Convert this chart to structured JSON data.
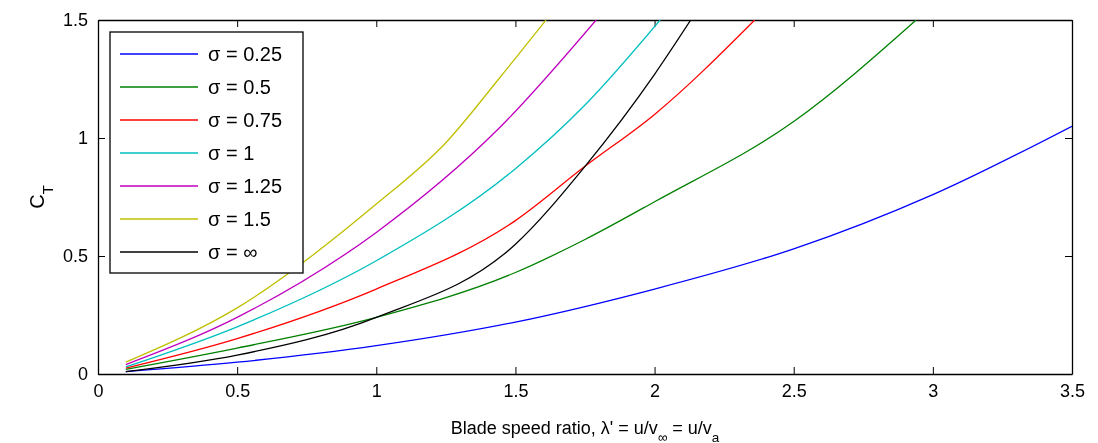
{
  "chart_data": {
    "type": "line",
    "xlabel": "Blade speed ratio, λ' = u/v$_{∞}$ = u/v$_{a}$",
    "ylabel": "C$_{T}$",
    "xlim": [
      0,
      3.5
    ],
    "xticks": [
      0,
      0.5,
      1,
      1.5,
      2,
      2.5,
      3,
      3.5
    ],
    "ylim": [
      0,
      1.5
    ],
    "yticks": [
      0,
      0.5,
      1,
      1.5
    ],
    "legend": "top left",
    "marker": "none",
    "line_style": "solid",
    "series": [
      {
        "name": "σ = 0.25",
        "color": "#0000ff",
        "x": [
          0.1,
          0.5,
          1,
          1.5,
          2,
          2.5,
          3,
          3.5
        ],
        "values": [
          0.01,
          0.05,
          0.12,
          0.22,
          0.36,
          0.53,
          0.76,
          1.05
        ]
      },
      {
        "name": "σ = 0.5",
        "color": "#008000",
        "x": [
          0.1,
          0.5,
          1,
          1.5,
          1.75,
          2,
          2.5,
          2.94
        ],
        "values": [
          0.02,
          0.11,
          0.24,
          0.43,
          0.57,
          0.73,
          1.07,
          1.5
        ]
      },
      {
        "name": "σ = 0.75",
        "color": "#ff0000",
        "x": [
          0.1,
          0.5,
          1,
          1.5,
          1.75,
          2,
          2.36
        ],
        "values": [
          0.025,
          0.15,
          0.36,
          0.65,
          0.88,
          1.1,
          1.5
        ]
      },
      {
        "name": "σ = 1",
        "color": "#00bfbf",
        "x": [
          0.1,
          0.5,
          1,
          1.5,
          1.75,
          2.02
        ],
        "values": [
          0.03,
          0.2,
          0.48,
          0.87,
          1.14,
          1.5
        ]
      },
      {
        "name": "σ = 1.25",
        "color": "#bf00bf",
        "x": [
          0.1,
          0.5,
          1,
          1.44,
          1.79
        ],
        "values": [
          0.04,
          0.24,
          0.6,
          1.04,
          1.5
        ]
      },
      {
        "name": "σ = 1.5",
        "color": "#bfbf00",
        "x": [
          0.1,
          0.5,
          1,
          1.25,
          1.44,
          1.61
        ],
        "values": [
          0.05,
          0.28,
          0.72,
          0.98,
          1.25,
          1.5
        ]
      },
      {
        "name": "σ = ∞",
        "color": "#000000",
        "x": [
          0.1,
          0.5,
          1,
          1.5,
          1.75,
          2,
          2.13
        ],
        "values": [
          0.01,
          0.08,
          0.24,
          0.55,
          0.88,
          1.27,
          1.5
        ]
      }
    ]
  }
}
